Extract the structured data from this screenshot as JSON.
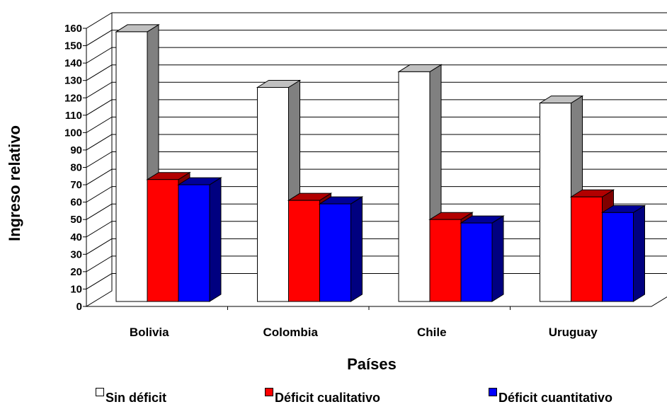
{
  "chart_data": {
    "type": "bar",
    "categories": [
      "Bolivia",
      "Colombia",
      "Chile",
      "Uruguay"
    ],
    "series": [
      {
        "name": "Sin déficit",
        "values": [
          158,
          126,
          135,
          117
        ],
        "color": "#ffffff",
        "top_color": "#c0c0c0",
        "side_color": "#808080"
      },
      {
        "name": "Déficit  cualitativo",
        "values": [
          73,
          61,
          50,
          63
        ],
        "color": "#ff0000",
        "top_color": "#b20000",
        "side_color": "#800000"
      },
      {
        "name": "Déficit cuantitativo",
        "values": [
          70,
          59,
          48,
          54
        ],
        "color": "#0000ff",
        "top_color": "#000099",
        "side_color": "#000080"
      }
    ],
    "xlabel": "Países",
    "ylabel": "Ingreso relativo",
    "ylim": [
      0,
      160
    ],
    "yticks": [
      0,
      10,
      20,
      30,
      40,
      50,
      60,
      70,
      80,
      90,
      100,
      110,
      120,
      130,
      140,
      150,
      160
    ],
    "grid": true,
    "legend_position": "bottom",
    "style": "3d-clustered-column"
  }
}
